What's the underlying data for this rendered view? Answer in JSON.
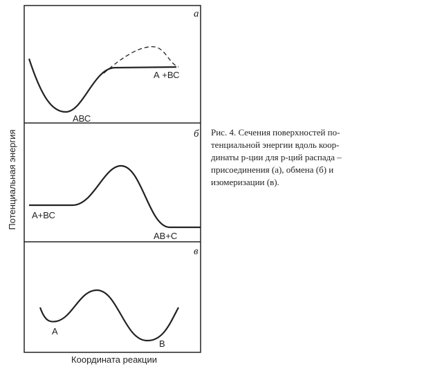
{
  "panels": [
    {
      "letter": "а",
      "labels": [
        "АВС",
        "А +ВС"
      ]
    },
    {
      "letter": "б",
      "labels": [
        "А+ВС",
        "АВ+С"
      ]
    },
    {
      "letter": "в",
      "labels": [
        "А",
        "В"
      ]
    }
  ],
  "y_axis_label": "Потенциальная энергия",
  "x_axis_label": "Координата реакции",
  "caption": [
    "Рис. 4. Сечения поверхностей по-",
    "тенциальной энергии вдоль коор-",
    "динаты р-ции для р-ций распада –",
    "присоединения (а), обмена (б) и",
    "изомеризации (в)."
  ]
}
